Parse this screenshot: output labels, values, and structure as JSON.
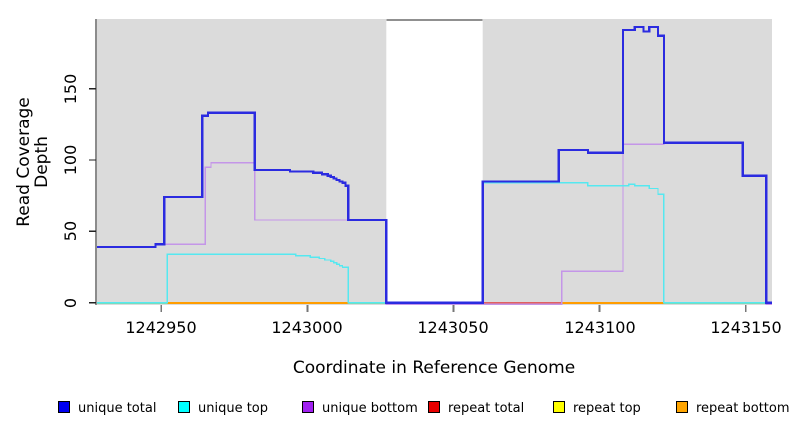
{
  "chart_data": {
    "type": "line",
    "subtype": "step-coverage",
    "title": "",
    "xlabel": "Coordinate in Reference Genome",
    "ylabel": "Read Coverage Depth",
    "xlim": [
      1242928,
      1243159
    ],
    "ylim": [
      0,
      198
    ],
    "xticks": [
      1242950,
      1243000,
      1243050,
      1243100,
      1243150
    ],
    "yticks": [
      0,
      50,
      100,
      150
    ],
    "grid": false,
    "legend_position": "bottom",
    "panel_bg": "#dbdbdb",
    "no_data_gap": {
      "x1": 1243027,
      "x2": 1243060,
      "fill": "#ffffff",
      "top_line_color": "#909090"
    },
    "legend": [
      {
        "label": "unique total",
        "color": "#0000f0"
      },
      {
        "label": "unique top",
        "color": "#00ffff"
      },
      {
        "label": "unique bottom",
        "color": "#a020f0"
      },
      {
        "label": "repeat total",
        "color": "#e80000"
      },
      {
        "label": "repeat top",
        "color": "#ffff00"
      },
      {
        "label": "repeat bottom",
        "color": "#ffa500"
      }
    ],
    "series": [
      {
        "name": "unique total",
        "color": "#2b2be0",
        "width": 2.2,
        "points": [
          [
            1242928,
            39
          ],
          [
            1242948,
            41
          ],
          [
            1242951,
            74
          ],
          [
            1242964,
            131
          ],
          [
            1242966,
            133
          ],
          [
            1242982,
            93
          ],
          [
            1242994,
            92
          ],
          [
            1243002,
            91
          ],
          [
            1243005,
            90
          ],
          [
            1243007,
            89
          ],
          [
            1243008,
            88
          ],
          [
            1243009,
            87
          ],
          [
            1243010,
            86
          ],
          [
            1243011,
            85
          ],
          [
            1243012,
            84
          ],
          [
            1243013,
            82
          ],
          [
            1243014,
            58
          ],
          [
            1243027,
            0
          ],
          [
            1243060,
            85
          ],
          [
            1243086,
            107
          ],
          [
            1243096,
            105
          ],
          [
            1243108,
            191
          ],
          [
            1243112,
            193
          ],
          [
            1243115,
            190
          ],
          [
            1243117,
            193
          ],
          [
            1243120,
            187
          ],
          [
            1243122,
            112
          ],
          [
            1243149,
            89
          ],
          [
            1243157,
            0
          ],
          [
            1243159,
            0
          ]
        ]
      },
      {
        "name": "unique top",
        "color": "#55e8f0",
        "width": 1.4,
        "points": [
          [
            1242928,
            0
          ],
          [
            1242952,
            34
          ],
          [
            1242996,
            33
          ],
          [
            1243001,
            32
          ],
          [
            1243004,
            31
          ],
          [
            1243006,
            30
          ],
          [
            1243008,
            29
          ],
          [
            1243009,
            28
          ],
          [
            1243010,
            27
          ],
          [
            1243011,
            26
          ],
          [
            1243012,
            25
          ],
          [
            1243014,
            0
          ],
          [
            1243060,
            84
          ],
          [
            1243096,
            82
          ],
          [
            1243110,
            83
          ],
          [
            1243112,
            82
          ],
          [
            1243117,
            80
          ],
          [
            1243120,
            76
          ],
          [
            1243122,
            0
          ],
          [
            1243159,
            0
          ]
        ]
      },
      {
        "name": "unique bottom",
        "color": "#c496e8",
        "width": 1.4,
        "zero_offset": 1.4,
        "points": [
          [
            1242928,
            39
          ],
          [
            1242948,
            41
          ],
          [
            1242965,
            95
          ],
          [
            1242967,
            98
          ],
          [
            1242982,
            58
          ],
          [
            1243027,
            0
          ],
          [
            1243087,
            22
          ],
          [
            1243108,
            111
          ],
          [
            1243122,
            112
          ],
          [
            1243149,
            89
          ],
          [
            1243157,
            0
          ],
          [
            1243159,
            0
          ]
        ]
      },
      {
        "name": "repeat total",
        "color": "#e06060",
        "width": 1.4,
        "points": [
          [
            1242928,
            0
          ],
          [
            1243159,
            0
          ]
        ]
      },
      {
        "name": "repeat top",
        "color": "#f0f060",
        "width": 1.2,
        "points": [
          [
            1242928,
            0
          ],
          [
            1243159,
            0
          ]
        ]
      },
      {
        "name": "repeat bottom",
        "color": "#ff9d00",
        "width": 2.2,
        "draw_as_segments": true,
        "points": [
          [
            1242928,
            0
          ],
          [
            1243159,
            0
          ]
        ]
      }
    ],
    "baseline_segments": [
      {
        "x1": 1242928,
        "x2": 1242952,
        "color": "#8fd694",
        "width": 1.8
      },
      {
        "x1": 1242952,
        "x2": 1243014,
        "color": "#ff9d00",
        "width": 2.2
      },
      {
        "x1": 1243014,
        "x2": 1243027,
        "color": "#8fd694",
        "width": 1.8
      },
      {
        "x1": 1243087,
        "x2": 1243122,
        "color": "#ff9d00",
        "width": 2.2
      },
      {
        "x1": 1243122,
        "x2": 1243159,
        "color": "#8fd694",
        "width": 1.8
      }
    ]
  }
}
